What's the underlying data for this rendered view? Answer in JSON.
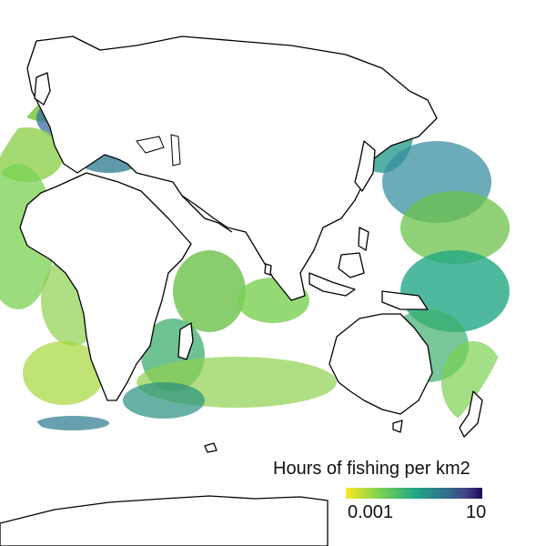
{
  "legend": {
    "title": "Hours of fishing per km2",
    "min_label": "0.001",
    "max_label": "10",
    "scale": "log",
    "colors": [
      "#fde725",
      "#7ad151",
      "#22a884",
      "#2a788e",
      "#414487",
      "#1f0a5e"
    ]
  },
  "map": {
    "projection": "world",
    "land_color": "#ffffff",
    "coast_color": "#000000",
    "ocean_background": "#ffffff"
  }
}
